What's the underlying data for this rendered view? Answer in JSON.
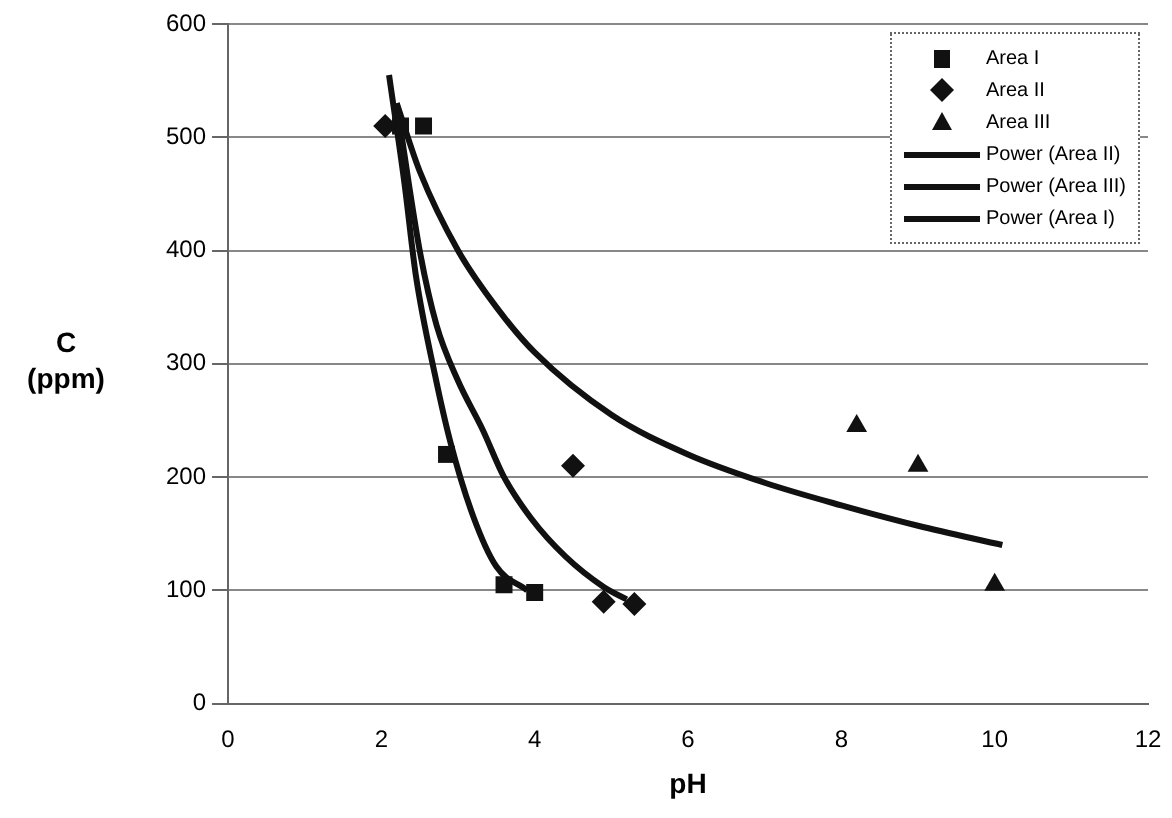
{
  "chart_data": {
    "type": "scatter",
    "xlabel": "pH",
    "ylabel": "C (ppm)",
    "xlim": [
      0,
      12
    ],
    "xticks": [
      0,
      2,
      4,
      6,
      8,
      10,
      12
    ],
    "ylim": [
      0,
      600
    ],
    "yticks": [
      0,
      100,
      200,
      300,
      400,
      500,
      600
    ],
    "grid": "y",
    "legend": "top right",
    "series": [
      {
        "name": "Area I",
        "type": "scatter",
        "marker": "square",
        "color": "#111111",
        "x": [
          2.25,
          2.55,
          2.85,
          3.6,
          4.0
        ],
        "values": [
          510,
          510,
          220,
          105,
          98
        ]
      },
      {
        "name": "Area II",
        "type": "scatter",
        "marker": "diamond",
        "color": "#111111",
        "x": [
          2.05,
          4.5,
          4.9,
          5.3
        ],
        "values": [
          510,
          210,
          90,
          88
        ]
      },
      {
        "name": "Area III",
        "type": "scatter",
        "marker": "triangle",
        "color": "#111111",
        "x": [
          8.2,
          9.0,
          10.0
        ],
        "values": [
          245,
          210,
          105
        ]
      },
      {
        "name": "Power (Area II)",
        "type": "line",
        "marker": "none",
        "color": "#111111",
        "x": [
          2.2,
          2.5,
          2.72,
          3.0,
          3.32,
          3.6,
          3.96,
          4.4,
          4.9,
          5.2
        ],
        "values": [
          530,
          400,
          334,
          285,
          242,
          200,
          163,
          130,
          103,
          92
        ]
      },
      {
        "name": "Power (Area III)",
        "type": "line",
        "marker": "none",
        "color": "#111111",
        "x": [
          2.2,
          2.5,
          3.0,
          3.5,
          4.0,
          5.0,
          6.0,
          7.0,
          8.0,
          9.0,
          10.1
        ],
        "values": [
          530,
          470,
          400,
          350,
          310,
          255,
          220,
          195,
          175,
          157,
          140
        ]
      },
      {
        "name": "Power (Area I)",
        "type": "line",
        "marker": "none",
        "color": "#111111",
        "x": [
          2.1,
          2.3,
          2.45,
          2.7,
          2.9,
          3.2,
          3.5,
          3.9
        ],
        "values": [
          555,
          460,
          378,
          290,
          231,
          165,
          121,
          100
        ]
      }
    ]
  }
}
